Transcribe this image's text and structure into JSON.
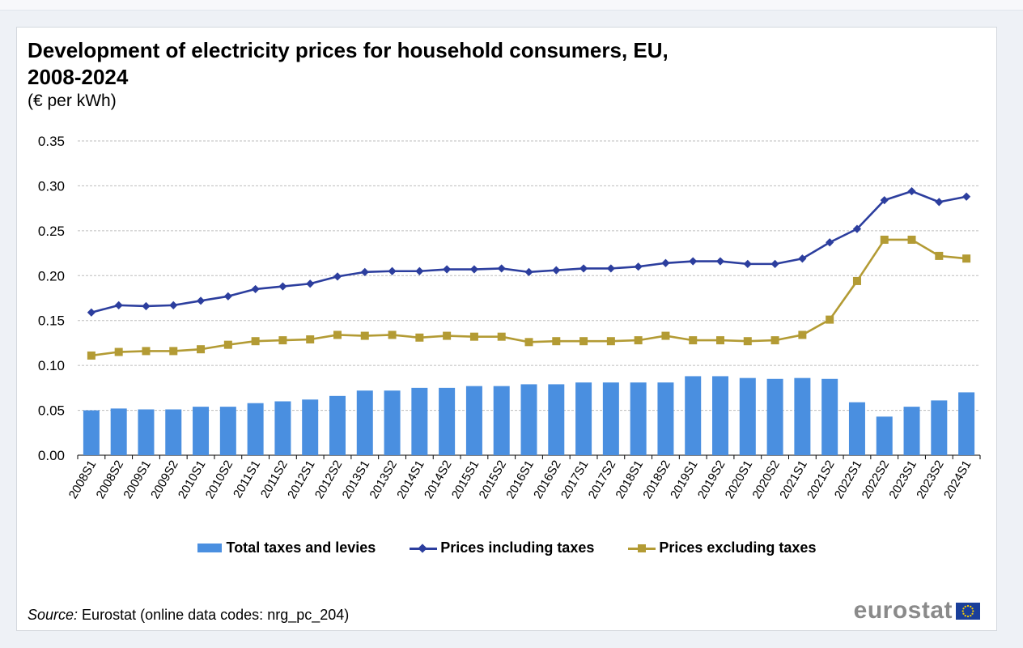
{
  "chart_data": {
    "type": "bar",
    "title": "Development of electricity prices for household consumers, EU, 2008-2024",
    "subtitle": "(€ per kWh)",
    "categories": [
      "2008S1",
      "2008S2",
      "2009S1",
      "2009S2",
      "2010S1",
      "2010S2",
      "2011S1",
      "2011S2",
      "2012S1",
      "2012S2",
      "2013S1",
      "2013S2",
      "2014S1",
      "2014S2",
      "2015S1",
      "2015S2",
      "2016S1",
      "2016S2",
      "2017S1",
      "2017S2",
      "2018S1",
      "2018S2",
      "2019S1",
      "2019S2",
      "2020S1",
      "2020S2",
      "2021S1",
      "2021S2",
      "2022S1",
      "2022S2",
      "2023S1",
      "2023S2",
      "2024S1"
    ],
    "ylim": [
      0,
      0.35
    ],
    "yticks": [
      "0.00",
      "0.05",
      "0.10",
      "0.15",
      "0.20",
      "0.25",
      "0.30",
      "0.35"
    ],
    "grid": true,
    "legend_position": "bottom",
    "series": [
      {
        "name": "Total taxes and levies",
        "type": "bar",
        "color": "#4a8fe0",
        "values": [
          0.05,
          0.052,
          0.051,
          0.051,
          0.054,
          0.054,
          0.058,
          0.06,
          0.062,
          0.066,
          0.072,
          0.072,
          0.075,
          0.075,
          0.077,
          0.077,
          0.079,
          0.079,
          0.081,
          0.081,
          0.081,
          0.081,
          0.088,
          0.088,
          0.086,
          0.085,
          0.086,
          0.085,
          0.059,
          0.043,
          0.054,
          0.061,
          0.07
        ]
      },
      {
        "name": "Prices including taxes",
        "type": "line",
        "marker": "diamond",
        "color": "#2c3e9e",
        "values": [
          0.159,
          0.167,
          0.166,
          0.167,
          0.172,
          0.177,
          0.185,
          0.188,
          0.191,
          0.199,
          0.204,
          0.205,
          0.205,
          0.207,
          0.207,
          0.208,
          0.204,
          0.206,
          0.208,
          0.208,
          0.21,
          0.214,
          0.216,
          0.216,
          0.213,
          0.213,
          0.219,
          0.237,
          0.252,
          0.284,
          0.294,
          0.282,
          0.288
        ]
      },
      {
        "name": "Prices excluding taxes",
        "type": "line",
        "marker": "square",
        "color": "#b39b34",
        "values": [
          0.111,
          0.115,
          0.116,
          0.116,
          0.118,
          0.123,
          0.127,
          0.128,
          0.129,
          0.134,
          0.133,
          0.134,
          0.131,
          0.133,
          0.132,
          0.132,
          0.126,
          0.127,
          0.127,
          0.127,
          0.128,
          0.133,
          0.128,
          0.128,
          0.127,
          0.128,
          0.134,
          0.151,
          0.194,
          0.24,
          0.24,
          0.222,
          0.219
        ]
      }
    ]
  },
  "header": {
    "title_line1": "Development of electricity prices for household consumers, EU,",
    "title_line2": "2008-2024",
    "unit": "(€ per kWh)"
  },
  "footer": {
    "source_label": "Source:",
    "source_text": " Eurostat (online data codes: nrg_pc_204)",
    "brand": "eurostat"
  }
}
